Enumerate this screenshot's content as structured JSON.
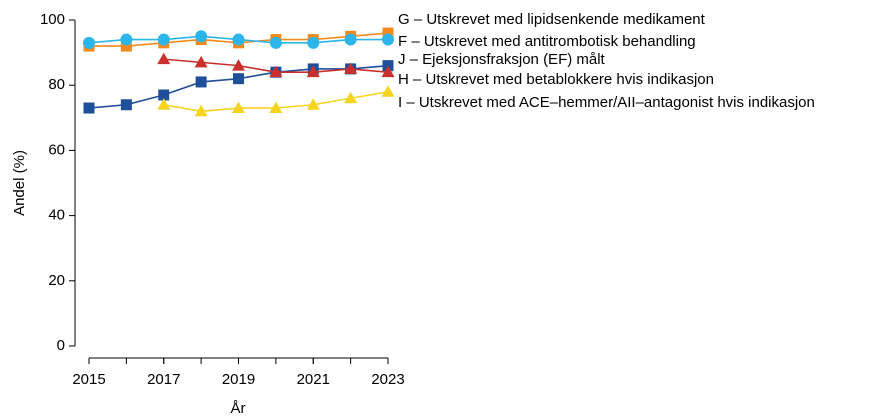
{
  "chart_data": {
    "type": "line",
    "x": [
      2015,
      2016,
      2017,
      2018,
      2019,
      2020,
      2021,
      2022,
      2023
    ],
    "xlim": [
      2015,
      2023
    ],
    "xticks": [
      2015,
      2017,
      2019,
      2021,
      2023
    ],
    "ylim": [
      0,
      100
    ],
    "yticks": [
      0,
      20,
      40,
      60,
      80,
      100
    ],
    "xlabel": "År",
    "ylabel": "Andel (%)",
    "series": [
      {
        "name": "G – Utskrevet med lipidsenkende medikament",
        "color": "#f28a1e",
        "marker": "square",
        "values": [
          92,
          92,
          93,
          94,
          93,
          94,
          94,
          95,
          96
        ]
      },
      {
        "name": "F – Utskrevet med antitrombotisk behandling",
        "color": "#2bb5e8",
        "marker": "circle",
        "values": [
          93,
          94,
          94,
          95,
          94,
          93,
          93,
          94,
          94
        ]
      },
      {
        "name": "J – Ejeksjonsfraksjon (EF) målt",
        "color": "#1f4e9a",
        "marker": "square",
        "values": [
          73,
          74,
          77,
          81,
          82,
          84,
          85,
          85,
          86
        ]
      },
      {
        "name": "H – Utskrevet med betablokkere hvis indikasjon",
        "color": "#c9302c",
        "marker": "triangle",
        "values": [
          null,
          null,
          88,
          87,
          86,
          84,
          84,
          85,
          84
        ]
      },
      {
        "name": "I – Utskrevet med ACE–hemmer/AII–antagonist hvis indikasjon",
        "color": "#f5d31f",
        "marker": "triangle",
        "values": [
          null,
          null,
          74,
          72,
          73,
          73,
          74,
          76,
          78
        ]
      }
    ]
  }
}
